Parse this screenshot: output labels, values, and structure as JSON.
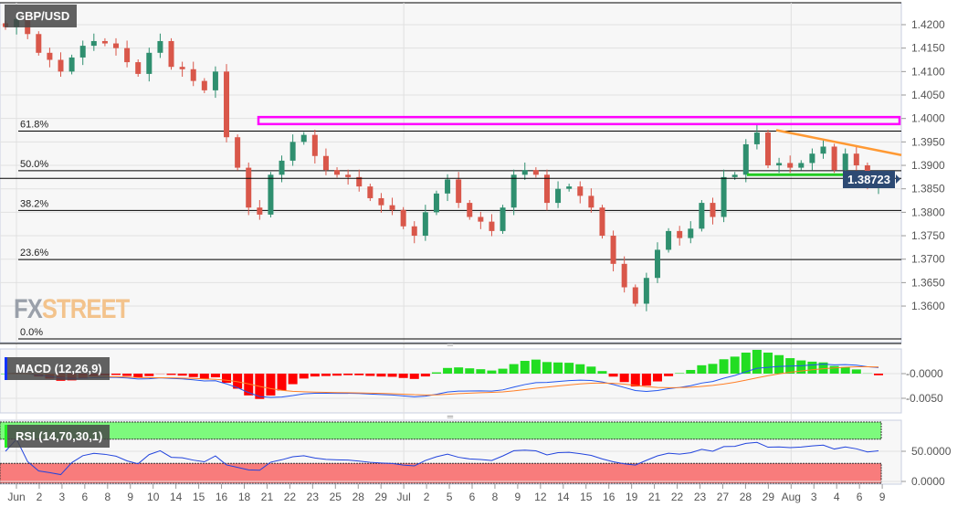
{
  "symbol": "GBP/USD",
  "logo": {
    "fx": "FX",
    "street": "STREET"
  },
  "current_price": "1.38723",
  "colors": {
    "up": "#2f8f6f",
    "down": "#d9574a",
    "magenta": "#ff00ff",
    "orange": "#ff9933",
    "green_line": "#22cc22",
    "macd_line": "#2255ee",
    "signal_line": "#ff7f27",
    "hist_pos": "#22dd22",
    "hist_neg": "#ff0000",
    "rsi_line": "#2244dd",
    "rsi_over": "#7dfa7d",
    "rsi_under": "#f87c7c",
    "price_tag": "#2d4a73"
  },
  "chart_data": [
    {
      "type": "candlestick",
      "title": "GBP/USD",
      "ylim": [
        1.353,
        1.425
      ],
      "yticks": [
        "1.4200",
        "1.4150",
        "1.4100",
        "1.4050",
        "1.4000",
        "1.3950",
        "1.3900",
        "1.3850",
        "1.3800",
        "1.3750",
        "1.3700",
        "1.3650",
        "1.3600"
      ],
      "ytick_values": [
        1.42,
        1.415,
        1.41,
        1.405,
        1.4,
        1.395,
        1.39,
        1.385,
        1.38,
        1.375,
        1.37,
        1.365,
        1.36
      ],
      "xticks": [
        "Jun",
        "2",
        "3",
        "6",
        "8",
        "9",
        "10",
        "14",
        "15",
        "16",
        "18",
        "21",
        "22",
        "23",
        "25",
        "28",
        "29",
        "Jul",
        "2",
        "5",
        "6",
        "8",
        "9",
        "12",
        "14",
        "15",
        "16",
        "19",
        "21",
        "22",
        "23",
        "27",
        "28",
        "29",
        "Aug",
        "3",
        "4",
        "6",
        "9"
      ],
      "closes": [
        1.4195,
        1.4212,
        1.418,
        1.414,
        1.4125,
        1.41,
        1.413,
        1.4155,
        1.4165,
        1.416,
        1.415,
        1.412,
        1.4095,
        1.414,
        1.4165,
        1.411,
        1.4105,
        1.408,
        1.406,
        1.41,
        1.396,
        1.3895,
        1.381,
        1.3795,
        1.388,
        1.391,
        1.395,
        1.3965,
        1.392,
        1.389,
        1.388,
        1.3875,
        1.3855,
        1.383,
        1.3815,
        1.3805,
        1.377,
        1.375,
        1.38,
        1.384,
        1.387,
        1.382,
        1.379,
        1.378,
        1.376,
        1.381,
        1.388,
        1.389,
        1.388,
        1.382,
        1.385,
        1.3855,
        1.3835,
        1.381,
        1.375,
        1.369,
        1.364,
        1.3605,
        1.366,
        1.372,
        1.376,
        1.3745,
        1.3765,
        1.382,
        1.379,
        1.3875,
        1.388,
        1.3945,
        1.397,
        1.39,
        1.3905,
        1.3895,
        1.3905,
        1.3925,
        1.394,
        1.389,
        1.3925,
        1.39,
        1.3855,
        1.38723
      ],
      "fibonacci": {
        "high": 1.4247,
        "low": 1.353,
        "levels": [
          {
            "label": "61.8%",
            "ratio": 0.618
          },
          {
            "label": "50.0%",
            "ratio": 0.5
          },
          {
            "label": "38.2%",
            "ratio": 0.382
          },
          {
            "label": "23.6%",
            "ratio": 0.236
          },
          {
            "label": "0.0%",
            "ratio": 0
          }
        ]
      },
      "resistance_zone": [
        1.3988,
        1.4003
      ],
      "trendline": {
        "from": 1.3975,
        "to": 1.3922
      },
      "support_line": 1.388
    },
    {
      "type": "line",
      "title": "MACD (12,26,9)",
      "yticks": [
        "-0.0000",
        "-0.0050"
      ],
      "ytick_values": [
        0,
        -0.005
      ]
    },
    {
      "type": "line",
      "title": "RSI (14,70,30,1)",
      "yticks": [
        "50.0000",
        "0.0000"
      ],
      "ytick_values": [
        50,
        0
      ],
      "overbought": 70,
      "oversold": 30
    }
  ]
}
